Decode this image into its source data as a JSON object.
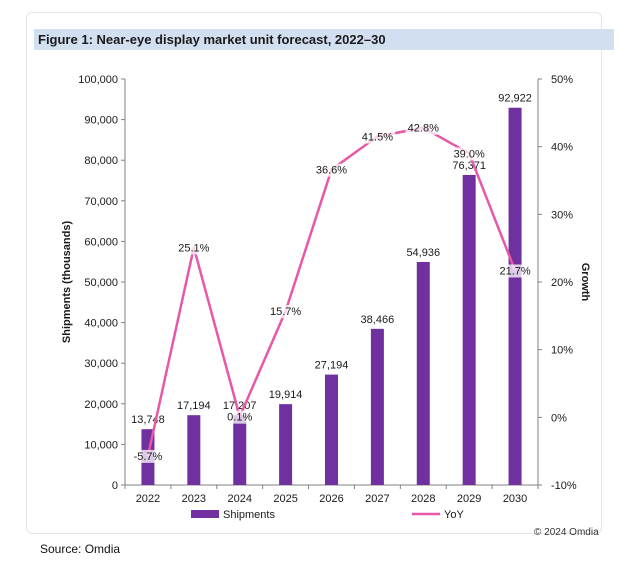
{
  "figure_title": "Figure 1: Near-eye display market unit forecast, 2022–30",
  "copyright": "© 2024 Omdia",
  "source": "Source: Omdia",
  "colors": {
    "bar": "#7030a0",
    "line": "#e857a8",
    "title_band": "#d2dff0",
    "label_box": "#f3d0e5"
  },
  "chart_data": {
    "type": "bar",
    "categories": [
      "2022",
      "2023",
      "2024",
      "2025",
      "2026",
      "2027",
      "2028",
      "2029",
      "2030"
    ],
    "series": [
      {
        "name": "Shipments",
        "type": "bar",
        "axis": "left",
        "values": [
          13748,
          17194,
          17207,
          19914,
          27194,
          38466,
          54936,
          76371,
          92922
        ],
        "labels": [
          "13,748",
          "17,194",
          "17,207",
          "19,914",
          "27,194",
          "38,466",
          "54,936",
          "76,371",
          "92,922"
        ]
      },
      {
        "name": "YoY",
        "type": "line",
        "axis": "right",
        "values": [
          -5.7,
          25.1,
          0.1,
          15.7,
          36.6,
          41.5,
          42.8,
          39.0,
          21.7
        ],
        "labels": [
          "-5.7%",
          "25.1%",
          "0.1%",
          "15.7%",
          "36.6%",
          "41.5%",
          "42.8%",
          "39.0%",
          "21.7%"
        ]
      }
    ],
    "ylabel": "Shipments (thousands)",
    "y2label": "Growth",
    "ylim": [
      0,
      100000
    ],
    "y2lim": [
      -10,
      50
    ],
    "yticks": [
      "0",
      "10,000",
      "20,000",
      "30,000",
      "40,000",
      "50,000",
      "60,000",
      "70,000",
      "80,000",
      "90,000",
      "100,000"
    ],
    "y2ticks": [
      "-10%",
      "0%",
      "10%",
      "20%",
      "30%",
      "40%",
      "50%"
    ],
    "grid": false,
    "legend_position": "bottom"
  }
}
